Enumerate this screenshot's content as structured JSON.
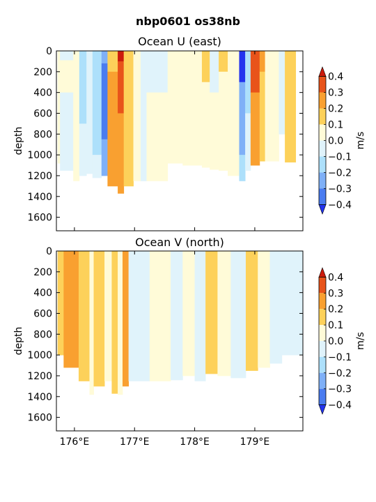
{
  "suptitle": "nbp0601 os38nb",
  "chart_data": {
    "type": "heatmap",
    "contour_levels": [
      -0.4,
      -0.3,
      -0.2,
      -0.1,
      0.0,
      0.1,
      0.2,
      0.3,
      0.4
    ],
    "level_colors": [
      "#2233ee",
      "#4a7cf0",
      "#7fb0f7",
      "#ade0fb",
      "#e0f3fb",
      "#fffbd8",
      "#fdd15a",
      "#f9a030",
      "#e8531a",
      "#cc1b0c"
    ],
    "xlim": [
      175.7,
      179.8
    ],
    "ylim": [
      1730,
      0
    ],
    "x_ticks": [
      176,
      177,
      178,
      179
    ],
    "x_tick_labels": [
      "176°E",
      "177°E",
      "178°E",
      "179°E"
    ],
    "y_ticks": [
      0,
      200,
      400,
      600,
      800,
      1000,
      1200,
      1400,
      1600
    ],
    "y_tick_labels": [
      "0",
      "200",
      "400",
      "600",
      "800",
      "1000",
      "1200",
      "1400",
      "1600"
    ],
    "panels": [
      {
        "title": "Ocean U (east)",
        "ylabel": "depth",
        "show_xticklabels": false,
        "colorbar": {
          "label": "m/s",
          "ticks": [
            "0.4",
            "0.3",
            "0.2",
            "0.1",
            "0.0",
            "−0.1",
            "−0.2",
            "−0.3",
            "−0.4"
          ]
        },
        "bands": [
          {
            "x": [
              175.72,
              175.76
            ],
            "bottom": 1080,
            "segments": [
              [
                0,
                1080,
                "#fffbd8"
              ]
            ]
          },
          {
            "x": [
              175.76,
              175.98
            ],
            "bottom": 1150,
            "segments": [
              [
                0,
                90,
                "#e0f3fb"
              ],
              [
                90,
                400,
                "#fffbd8"
              ],
              [
                400,
                1150,
                "#e0f3fb"
              ]
            ]
          },
          {
            "x": [
              175.98,
              176.08
            ],
            "bottom": 1250,
            "segments": [
              [
                0,
                1250,
                "#fffbd8"
              ]
            ]
          },
          {
            "x": [
              176.08,
              176.2
            ],
            "bottom": 1200,
            "segments": [
              [
                0,
                700,
                "#ade0fb"
              ],
              [
                700,
                1200,
                "#e0f3fb"
              ]
            ]
          },
          {
            "x": [
              176.2,
              176.3
            ],
            "bottom": 1180,
            "segments": [
              [
                0,
                1180,
                "#e0f3fb"
              ]
            ]
          },
          {
            "x": [
              176.3,
              176.45
            ],
            "bottom": 1220,
            "segments": [
              [
                0,
                1000,
                "#ade0fb"
              ],
              [
                1000,
                1220,
                "#e0f3fb"
              ]
            ]
          },
          {
            "x": [
              176.45,
              176.55
            ],
            "bottom": 1200,
            "segments": [
              [
                0,
                120,
                "#7fb0f7"
              ],
              [
                120,
                850,
                "#4a7cf0"
              ],
              [
                850,
                1200,
                "#7fb0f7"
              ]
            ]
          },
          {
            "x": [
              176.55,
              176.72
            ],
            "bottom": 1300,
            "segments": [
              [
                0,
                200,
                "#fdd15a"
              ],
              [
                200,
                1300,
                "#f9a030"
              ]
            ]
          },
          {
            "x": [
              176.72,
              176.82
            ],
            "bottom": 1370,
            "segments": [
              [
                0,
                100,
                "#cc1b0c"
              ],
              [
                100,
                600,
                "#e8531a"
              ],
              [
                600,
                1370,
                "#f9a030"
              ]
            ]
          },
          {
            "x": [
              176.82,
              176.98
            ],
            "bottom": 1300,
            "segments": [
              [
                0,
                1300,
                "#fdd15a"
              ]
            ]
          },
          {
            "x": [
              176.98,
              177.1
            ],
            "bottom": 1250,
            "segments": [
              [
                0,
                1250,
                "#fffbd8"
              ]
            ]
          },
          {
            "x": [
              177.1,
              177.2
            ],
            "bottom": 1250,
            "segments": [
              [
                0,
                1250,
                "#e0f3fb"
              ]
            ]
          },
          {
            "x": [
              177.2,
              177.55
            ],
            "bottom": 1250,
            "segments": [
              [
                0,
                400,
                "#e0f3fb"
              ],
              [
                400,
                1250,
                "#fffbd8"
              ]
            ]
          },
          {
            "x": [
              177.55,
              177.8
            ],
            "bottom": 1080,
            "segments": [
              [
                0,
                1080,
                "#fffbd8"
              ]
            ]
          },
          {
            "x": [
              177.8,
              178.12
            ],
            "bottom": 1100,
            "segments": [
              [
                0,
                1100,
                "#fffbd8"
              ]
            ]
          },
          {
            "x": [
              178.12,
              178.25
            ],
            "bottom": 1120,
            "segments": [
              [
                0,
                300,
                "#fdd15a"
              ],
              [
                300,
                1120,
                "#fffbd8"
              ]
            ]
          },
          {
            "x": [
              178.25,
              178.4
            ],
            "bottom": 1140,
            "segments": [
              [
                0,
                400,
                "#e0f3fb"
              ],
              [
                400,
                1140,
                "#fffbd8"
              ]
            ]
          },
          {
            "x": [
              178.4,
              178.55
            ],
            "bottom": 1150,
            "segments": [
              [
                0,
                200,
                "#fdd15a"
              ],
              [
                200,
                1150,
                "#fffbd8"
              ]
            ]
          },
          {
            "x": [
              178.55,
              178.74
            ],
            "bottom": 1200,
            "segments": [
              [
                0,
                1200,
                "#fffbd8"
              ]
            ]
          },
          {
            "x": [
              178.74,
              178.84
            ],
            "bottom": 1250,
            "segments": [
              [
                0,
                300,
                "#2233ee"
              ],
              [
                300,
                1000,
                "#7fb0f7"
              ],
              [
                1000,
                1250,
                "#ade0fb"
              ]
            ]
          },
          {
            "x": [
              178.84,
              178.93
            ],
            "bottom": 1150,
            "segments": [
              [
                0,
                600,
                "#ade0fb"
              ],
              [
                600,
                1150,
                "#e0f3fb"
              ]
            ]
          },
          {
            "x": [
              178.93,
              179.08
            ],
            "bottom": 1100,
            "segments": [
              [
                0,
                400,
                "#e8531a"
              ],
              [
                400,
                1100,
                "#f9a030"
              ]
            ]
          },
          {
            "x": [
              179.08,
              179.17
            ],
            "bottom": 1060,
            "segments": [
              [
                0,
                200,
                "#f9a030"
              ],
              [
                200,
                1060,
                "#fdd15a"
              ]
            ]
          },
          {
            "x": [
              179.17,
              179.4
            ],
            "bottom": 1060,
            "segments": [
              [
                0,
                1060,
                "#fffbd8"
              ]
            ]
          },
          {
            "x": [
              179.4,
              179.5
            ],
            "bottom": 800,
            "segments": [
              [
                0,
                800,
                "#e0f3fb"
              ]
            ]
          },
          {
            "x": [
              179.5,
              179.68
            ],
            "bottom": 1070,
            "segments": [
              [
                0,
                1070,
                "#fdd15a"
              ]
            ]
          }
        ]
      },
      {
        "title": "Ocean V (north)",
        "ylabel": "depth",
        "show_xticklabels": true,
        "colorbar": {
          "label": "m/s",
          "ticks": [
            "0.4",
            "0.3",
            "0.2",
            "0.1",
            "0.0",
            "−0.1",
            "−0.2",
            "−0.3",
            "−0.4"
          ]
        },
        "bands": [
          {
            "x": [
              175.72,
              175.82
            ],
            "bottom": 1000,
            "segments": [
              [
                0,
                1000,
                "#fdd15a"
              ]
            ]
          },
          {
            "x": [
              175.82,
              176.07
            ],
            "bottom": 1120,
            "segments": [
              [
                0,
                1120,
                "#f9a030"
              ]
            ]
          },
          {
            "x": [
              176.07,
              176.25
            ],
            "bottom": 1250,
            "segments": [
              [
                0,
                1250,
                "#fdd15a"
              ]
            ]
          },
          {
            "x": [
              176.25,
              176.32
            ],
            "bottom": 1380,
            "segments": [
              [
                0,
                1380,
                "#fffbd8"
              ]
            ]
          },
          {
            "x": [
              176.32,
              176.5
            ],
            "bottom": 1300,
            "segments": [
              [
                0,
                1300,
                "#fdd15a"
              ]
            ]
          },
          {
            "x": [
              176.5,
              176.62
            ],
            "bottom": 1250,
            "segments": [
              [
                0,
                1250,
                "#fffbd8"
              ]
            ]
          },
          {
            "x": [
              176.62,
              176.72
            ],
            "bottom": 1370,
            "segments": [
              [
                0,
                1370,
                "#fdd15a"
              ]
            ]
          },
          {
            "x": [
              176.72,
              176.8
            ],
            "bottom": 1380,
            "segments": [
              [
                0,
                1380,
                "#fffbd8"
              ]
            ]
          },
          {
            "x": [
              176.8,
              176.9
            ],
            "bottom": 1300,
            "segments": [
              [
                0,
                1300,
                "#f9a030"
              ]
            ]
          },
          {
            "x": [
              176.9,
              177.25
            ],
            "bottom": 1250,
            "segments": [
              [
                0,
                1250,
                "#e0f3fb"
              ]
            ]
          },
          {
            "x": [
              177.25,
              177.6
            ],
            "bottom": 1250,
            "segments": [
              [
                0,
                1250,
                "#fffbd8"
              ]
            ]
          },
          {
            "x": [
              177.6,
              177.8
            ],
            "bottom": 1240,
            "segments": [
              [
                0,
                1240,
                "#e0f3fb"
              ]
            ]
          },
          {
            "x": [
              177.8,
              178.0
            ],
            "bottom": 1200,
            "segments": [
              [
                0,
                1200,
                "#fffbd8"
              ]
            ]
          },
          {
            "x": [
              178.0,
              178.18
            ],
            "bottom": 1250,
            "segments": [
              [
                0,
                1250,
                "#e0f3fb"
              ]
            ]
          },
          {
            "x": [
              178.18,
              178.38
            ],
            "bottom": 1180,
            "segments": [
              [
                0,
                1180,
                "#fdd15a"
              ]
            ]
          },
          {
            "x": [
              178.38,
              178.6
            ],
            "bottom": 1200,
            "segments": [
              [
                0,
                1200,
                "#fffbd8"
              ]
            ]
          },
          {
            "x": [
              178.6,
              178.85
            ],
            "bottom": 1220,
            "segments": [
              [
                0,
                1220,
                "#e0f3fb"
              ]
            ]
          },
          {
            "x": [
              178.85,
              179.05
            ],
            "bottom": 1150,
            "segments": [
              [
                0,
                1150,
                "#fdd15a"
              ]
            ]
          },
          {
            "x": [
              179.05,
              179.25
            ],
            "bottom": 1120,
            "segments": [
              [
                0,
                1120,
                "#fffbd8"
              ]
            ]
          },
          {
            "x": [
              179.25,
              179.45
            ],
            "bottom": 1080,
            "segments": [
              [
                0,
                1080,
                "#e0f3fb"
              ]
            ]
          },
          {
            "x": [
              179.45,
              179.8
            ],
            "bottom": 1000,
            "segments": [
              [
                0,
                1000,
                "#e0f3fb"
              ]
            ]
          }
        ]
      }
    ]
  }
}
